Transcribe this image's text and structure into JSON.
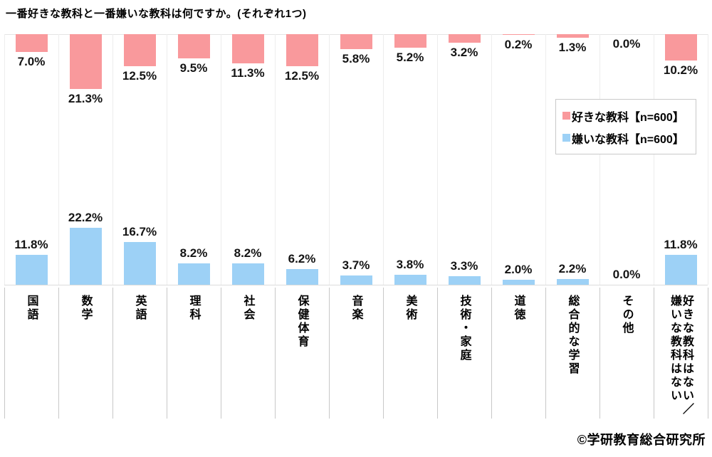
{
  "chart_data": {
    "type": "bar",
    "title": "一番好きな教科と一番嫌いな教科は何ですか。(それぞれ1つ)",
    "categories": [
      "国語",
      "数学",
      "英語",
      "理科",
      "社会",
      "保健体育",
      "音楽",
      "美術",
      "技術・家庭",
      "道徳",
      "総合的な学習",
      "その他",
      "好きな教科はない／\n嫌いな教科はない"
    ],
    "series": [
      {
        "name": "好きな教科【n=600】",
        "color": "#F9999C",
        "position": "hanging-from-top",
        "values": [
          7.0,
          21.3,
          12.5,
          9.5,
          11.3,
          12.5,
          5.8,
          5.2,
          3.2,
          0.2,
          1.3,
          0.0,
          10.2
        ]
      },
      {
        "name": "嫌いな教科【n=600】",
        "color": "#9DD1F6",
        "position": "rising-from-baseline",
        "values": [
          11.8,
          22.2,
          16.7,
          8.2,
          8.2,
          6.2,
          3.7,
          3.8,
          3.3,
          2.0,
          2.2,
          0.0,
          11.8
        ]
      }
    ],
    "value_suffix": "%",
    "value_decimals": 1,
    "implied_value_range": [
      0,
      25
    ],
    "layout": {
      "grid": "vertical-category-separators",
      "legend_position": "middle-right",
      "category_labels": "vertical-text"
    }
  },
  "footer": {
    "copyright": "©学研教育総合研究所"
  }
}
